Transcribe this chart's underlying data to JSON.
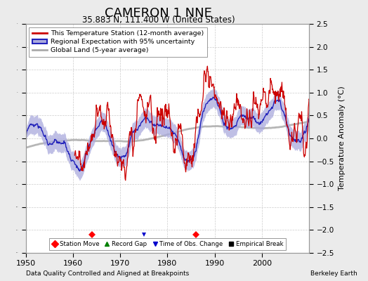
{
  "title": "CAMERON 1 NNE",
  "subtitle": "35.883 N, 111.400 W (United States)",
  "ylabel": "Temperature Anomaly (°C)",
  "xlabel_note": "Data Quality Controlled and Aligned at Breakpoints",
  "credit": "Berkeley Earth",
  "year_start": 1950,
  "year_end": 2011,
  "ylim": [
    -2.5,
    2.5
  ],
  "yticks": [
    -2.5,
    -2,
    -1.5,
    -1,
    -0.5,
    0,
    0.5,
    1,
    1.5,
    2,
    2.5
  ],
  "xticks": [
    1950,
    1960,
    1970,
    1980,
    1990,
    2000
  ],
  "station_move_years": [
    1964,
    1986
  ],
  "time_obs_change_years": [
    1975
  ],
  "colors": {
    "station_line": "#CC0000",
    "regional_line": "#2222BB",
    "regional_fill": "#AAAADD",
    "global_line": "#AAAAAA",
    "background": "#EBEBEB",
    "plot_bg": "#FFFFFF",
    "grid": "#CCCCCC"
  },
  "legend": {
    "station_label": "This Temperature Station (12-month average)",
    "regional_label": "Regional Expectation with 95% uncertainty",
    "global_label": "Global Land (5-year average)"
  }
}
